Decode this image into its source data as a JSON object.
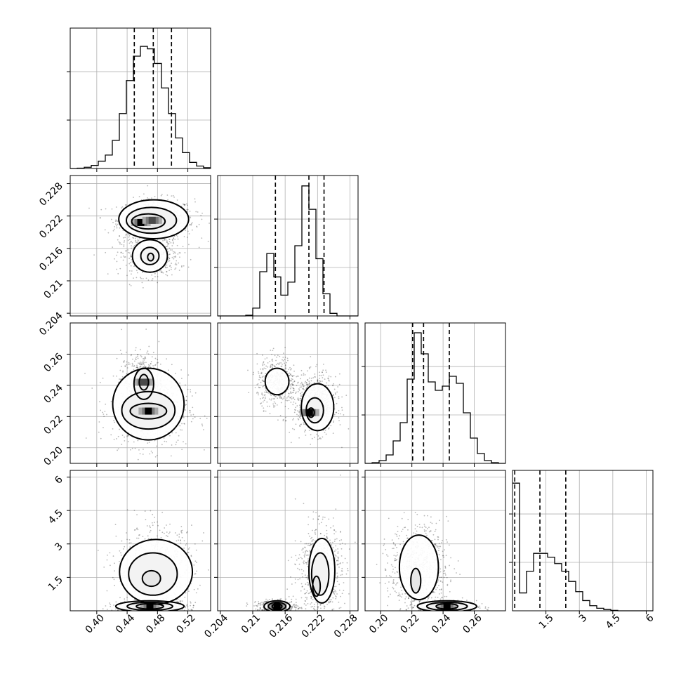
{
  "chart_data": {
    "type": "corner",
    "parameters": 4,
    "grid": true,
    "marginals": [
      {
        "x_ticks": [
          0.4,
          0.44,
          0.48,
          0.52
        ],
        "xlim": [
          0.365,
          0.55
        ],
        "bin_start": 0.365,
        "bin_width": 0.00925,
        "counts": [
          0,
          0.3,
          1,
          2.5,
          6,
          11,
          23,
          45,
          72,
          92,
          100,
          98,
          86,
          66,
          45,
          25,
          13,
          5,
          2,
          0.6
        ],
        "ymax": 115,
        "quantiles": [
          0.44945,
          0.47445,
          0.49845
        ]
      },
      {
        "x_ticks": [
          0.204,
          0.21,
          0.216,
          0.222,
          0.228
        ],
        "xlim": [
          0.2035,
          0.2295
        ],
        "bin_start": 0.2035,
        "bin_width": 0.0013,
        "counts": [
          0,
          0,
          0,
          0,
          0.5,
          6,
          34,
          48,
          30,
          16,
          26,
          54,
          100,
          82,
          44,
          17,
          2,
          0,
          0,
          0
        ],
        "ymax": 108,
        "quantiles": [
          0.2142,
          0.2204,
          0.2232
        ]
      },
      {
        "x_ticks": [
          0.2,
          0.22,
          0.24,
          0.26
        ],
        "xlim": [
          0.19,
          0.28
        ],
        "bin_start": 0.19,
        "bin_width": 0.0045,
        "counts": [
          0,
          0.5,
          2,
          6,
          16,
          29,
          60,
          93,
          78,
          58,
          52,
          55,
          62,
          57,
          36,
          18,
          7,
          2,
          0.5,
          0
        ],
        "ymax": 100,
        "quantiles": [
          0.2205,
          0.2275,
          0.244
        ]
      },
      {
        "x_ticks": [
          1.5,
          3.0,
          4.5,
          6.0
        ],
        "xlim": [
          0,
          6.3
        ],
        "bin_start": 0,
        "bin_width": 0.315,
        "counts": [
          100,
          14,
          31,
          45,
          45,
          42,
          37,
          31,
          23,
          15,
          8,
          4,
          2,
          1,
          0.3,
          0,
          0,
          0,
          0,
          0
        ],
        "ymax": 110,
        "quantiles": [
          0.1,
          1.23,
          2.39
        ]
      }
    ],
    "y_ticks": [
      [],
      [
        0.204,
        0.21,
        0.216,
        0.222,
        0.228
      ],
      [
        0.2,
        0.22,
        0.24,
        0.26
      ],
      [
        1.5,
        3.0,
        4.5,
        6.0
      ]
    ],
    "ylims": [
      null,
      [
        0.2035,
        0.2295
      ],
      [
        0.19,
        0.28
      ],
      [
        0,
        6.3
      ]
    ],
    "pairs": [
      {
        "row": 1,
        "col": 0,
        "points": 1200,
        "clusters": [
          {
            "x": 0.478,
            "y": 0.2212,
            "sx": 0.022,
            "sy": 0.0017,
            "w": 0.62
          },
          {
            "x": 0.47,
            "y": 0.2145,
            "sx": 0.017,
            "sy": 0.0016,
            "w": 0.38
          }
        ],
        "contours": [
          {
            "x": 0.475,
            "y": 0.2214,
            "rx": 0.046,
            "ry": 0.0036,
            "level": 0
          },
          {
            "x": 0.472,
            "y": 0.2212,
            "rx": 0.033,
            "ry": 0.0024,
            "level": 1
          },
          {
            "x": 0.468,
            "y": 0.221,
            "rx": 0.022,
            "ry": 0.0014,
            "level": 2
          },
          {
            "x": 0.47,
            "y": 0.2146,
            "rx": 0.023,
            "ry": 0.003,
            "level": 0
          },
          {
            "x": 0.47,
            "y": 0.2146,
            "rx": 0.012,
            "ry": 0.0016,
            "level": 1
          },
          {
            "x": 0.471,
            "y": 0.2144,
            "rx": 0.004,
            "ry": 0.0007,
            "level": 2
          }
        ],
        "peaks": [
          {
            "x": 0.458,
            "y": 0.2208,
            "intensity": 1.0
          },
          {
            "x": 0.473,
            "y": 0.2212,
            "intensity": 0.8
          }
        ]
      },
      {
        "row": 2,
        "col": 0,
        "points": 1200,
        "clusters": [
          {
            "x": 0.47,
            "y": 0.2235,
            "sx": 0.022,
            "sy": 0.01,
            "w": 0.62
          },
          {
            "x": 0.46,
            "y": 0.243,
            "sx": 0.012,
            "sy": 0.008,
            "w": 0.38
          }
        ],
        "contours": [
          {
            "x": 0.468,
            "y": 0.228,
            "rx": 0.047,
            "ry": 0.023,
            "level": 0
          },
          {
            "x": 0.468,
            "y": 0.224,
            "rx": 0.035,
            "ry": 0.012,
            "level": 1
          },
          {
            "x": 0.462,
            "y": 0.241,
            "rx": 0.013,
            "ry": 0.01,
            "level": 1
          },
          {
            "x": 0.468,
            "y": 0.2235,
            "rx": 0.024,
            "ry": 0.005,
            "level": 2
          },
          {
            "x": 0.462,
            "y": 0.242,
            "rx": 0.006,
            "ry": 0.005,
            "level": 2
          }
        ],
        "peaks": [
          {
            "x": 0.468,
            "y": 0.2235,
            "intensity": 1.0
          },
          {
            "x": 0.462,
            "y": 0.242,
            "intensity": 0.7
          }
        ]
      },
      {
        "row": 2,
        "col": 1,
        "points": 1200,
        "clusters": [
          {
            "x": 0.2145,
            "y": 0.2425,
            "sx": 0.0016,
            "sy": 0.007,
            "w": 0.38
          },
          {
            "x": 0.2215,
            "y": 0.228,
            "sx": 0.0017,
            "sy": 0.008,
            "w": 0.62
          }
        ],
        "contours": [
          {
            "x": 0.2145,
            "y": 0.2425,
            "rx": 0.0022,
            "ry": 0.0085,
            "level": 0
          },
          {
            "x": 0.222,
            "y": 0.226,
            "rx": 0.003,
            "ry": 0.015,
            "level": 0
          },
          {
            "x": 0.2215,
            "y": 0.224,
            "rx": 0.0016,
            "ry": 0.008,
            "level": 1
          },
          {
            "x": 0.2208,
            "y": 0.2225,
            "rx": 0.0006,
            "ry": 0.003,
            "level": 2
          }
        ],
        "peaks": [
          {
            "x": 0.2205,
            "y": 0.2225,
            "intensity": 1.0
          }
        ]
      },
      {
        "row": 3,
        "col": 0,
        "points": 1200,
        "clusters": [
          {
            "x": 0.47,
            "y": 0.18,
            "sx": 0.021,
            "sy": 0.12,
            "w": 0.38
          },
          {
            "x": 0.478,
            "y": 1.9,
            "sx": 0.022,
            "sy": 0.8,
            "w": 0.62
          }
        ],
        "contours": [
          {
            "x": 0.478,
            "y": 1.75,
            "rx": 0.048,
            "ry": 1.45,
            "level": 0
          },
          {
            "x": 0.474,
            "y": 1.65,
            "rx": 0.032,
            "ry": 0.95,
            "level": 1
          },
          {
            "x": 0.472,
            "y": 1.45,
            "rx": 0.012,
            "ry": 0.35,
            "level": 2
          },
          {
            "x": 0.47,
            "y": 0.2,
            "rx": 0.045,
            "ry": 0.25,
            "level": 0
          },
          {
            "x": 0.47,
            "y": 0.2,
            "rx": 0.03,
            "ry": 0.18,
            "level": 1
          },
          {
            "x": 0.47,
            "y": 0.2,
            "rx": 0.018,
            "ry": 0.12,
            "level": 2
          }
        ],
        "peaks": [
          {
            "x": 0.47,
            "y": 0.2,
            "intensity": 1.0
          }
        ]
      },
      {
        "row": 3,
        "col": 1,
        "points": 1200,
        "clusters": [
          {
            "x": 0.2145,
            "y": 0.18,
            "sx": 0.0016,
            "sy": 0.12,
            "w": 0.38
          },
          {
            "x": 0.2225,
            "y": 1.9,
            "sx": 0.0017,
            "sy": 0.85,
            "w": 0.62
          }
        ],
        "contours": [
          {
            "x": 0.2228,
            "y": 1.8,
            "rx": 0.0024,
            "ry": 1.45,
            "level": 0
          },
          {
            "x": 0.2225,
            "y": 1.65,
            "rx": 0.0016,
            "ry": 0.95,
            "level": 1
          },
          {
            "x": 0.2218,
            "y": 1.1,
            "rx": 0.0007,
            "ry": 0.45,
            "level": 2
          },
          {
            "x": 0.2145,
            "y": 0.2,
            "rx": 0.0024,
            "ry": 0.25,
            "level": 0
          },
          {
            "x": 0.2145,
            "y": 0.2,
            "rx": 0.0016,
            "ry": 0.18,
            "level": 1
          },
          {
            "x": 0.2145,
            "y": 0.2,
            "rx": 0.0009,
            "ry": 0.12,
            "level": 2
          }
        ],
        "peaks": [
          {
            "x": 0.2145,
            "y": 0.2,
            "intensity": 1.0
          }
        ]
      },
      {
        "row": 3,
        "col": 2,
        "points": 1200,
        "clusters": [
          {
            "x": 0.2245,
            "y": 1.9,
            "sx": 0.008,
            "sy": 0.85,
            "w": 0.62
          },
          {
            "x": 0.243,
            "y": 0.18,
            "sx": 0.008,
            "sy": 0.12,
            "w": 0.38
          }
        ],
        "contours": [
          {
            "x": 0.2245,
            "y": 1.95,
            "rx": 0.0125,
            "ry": 1.45,
            "level": 0
          },
          {
            "x": 0.2225,
            "y": 1.35,
            "rx": 0.0032,
            "ry": 0.55,
            "level": 2
          },
          {
            "x": 0.2425,
            "y": 0.2,
            "rx": 0.019,
            "ry": 0.25,
            "level": 0
          },
          {
            "x": 0.2425,
            "y": 0.2,
            "rx": 0.013,
            "ry": 0.18,
            "level": 1
          },
          {
            "x": 0.2425,
            "y": 0.2,
            "rx": 0.007,
            "ry": 0.12,
            "level": 2
          }
        ],
        "peaks": [
          {
            "x": 0.2425,
            "y": 0.2,
            "intensity": 1.0
          }
        ]
      }
    ]
  }
}
